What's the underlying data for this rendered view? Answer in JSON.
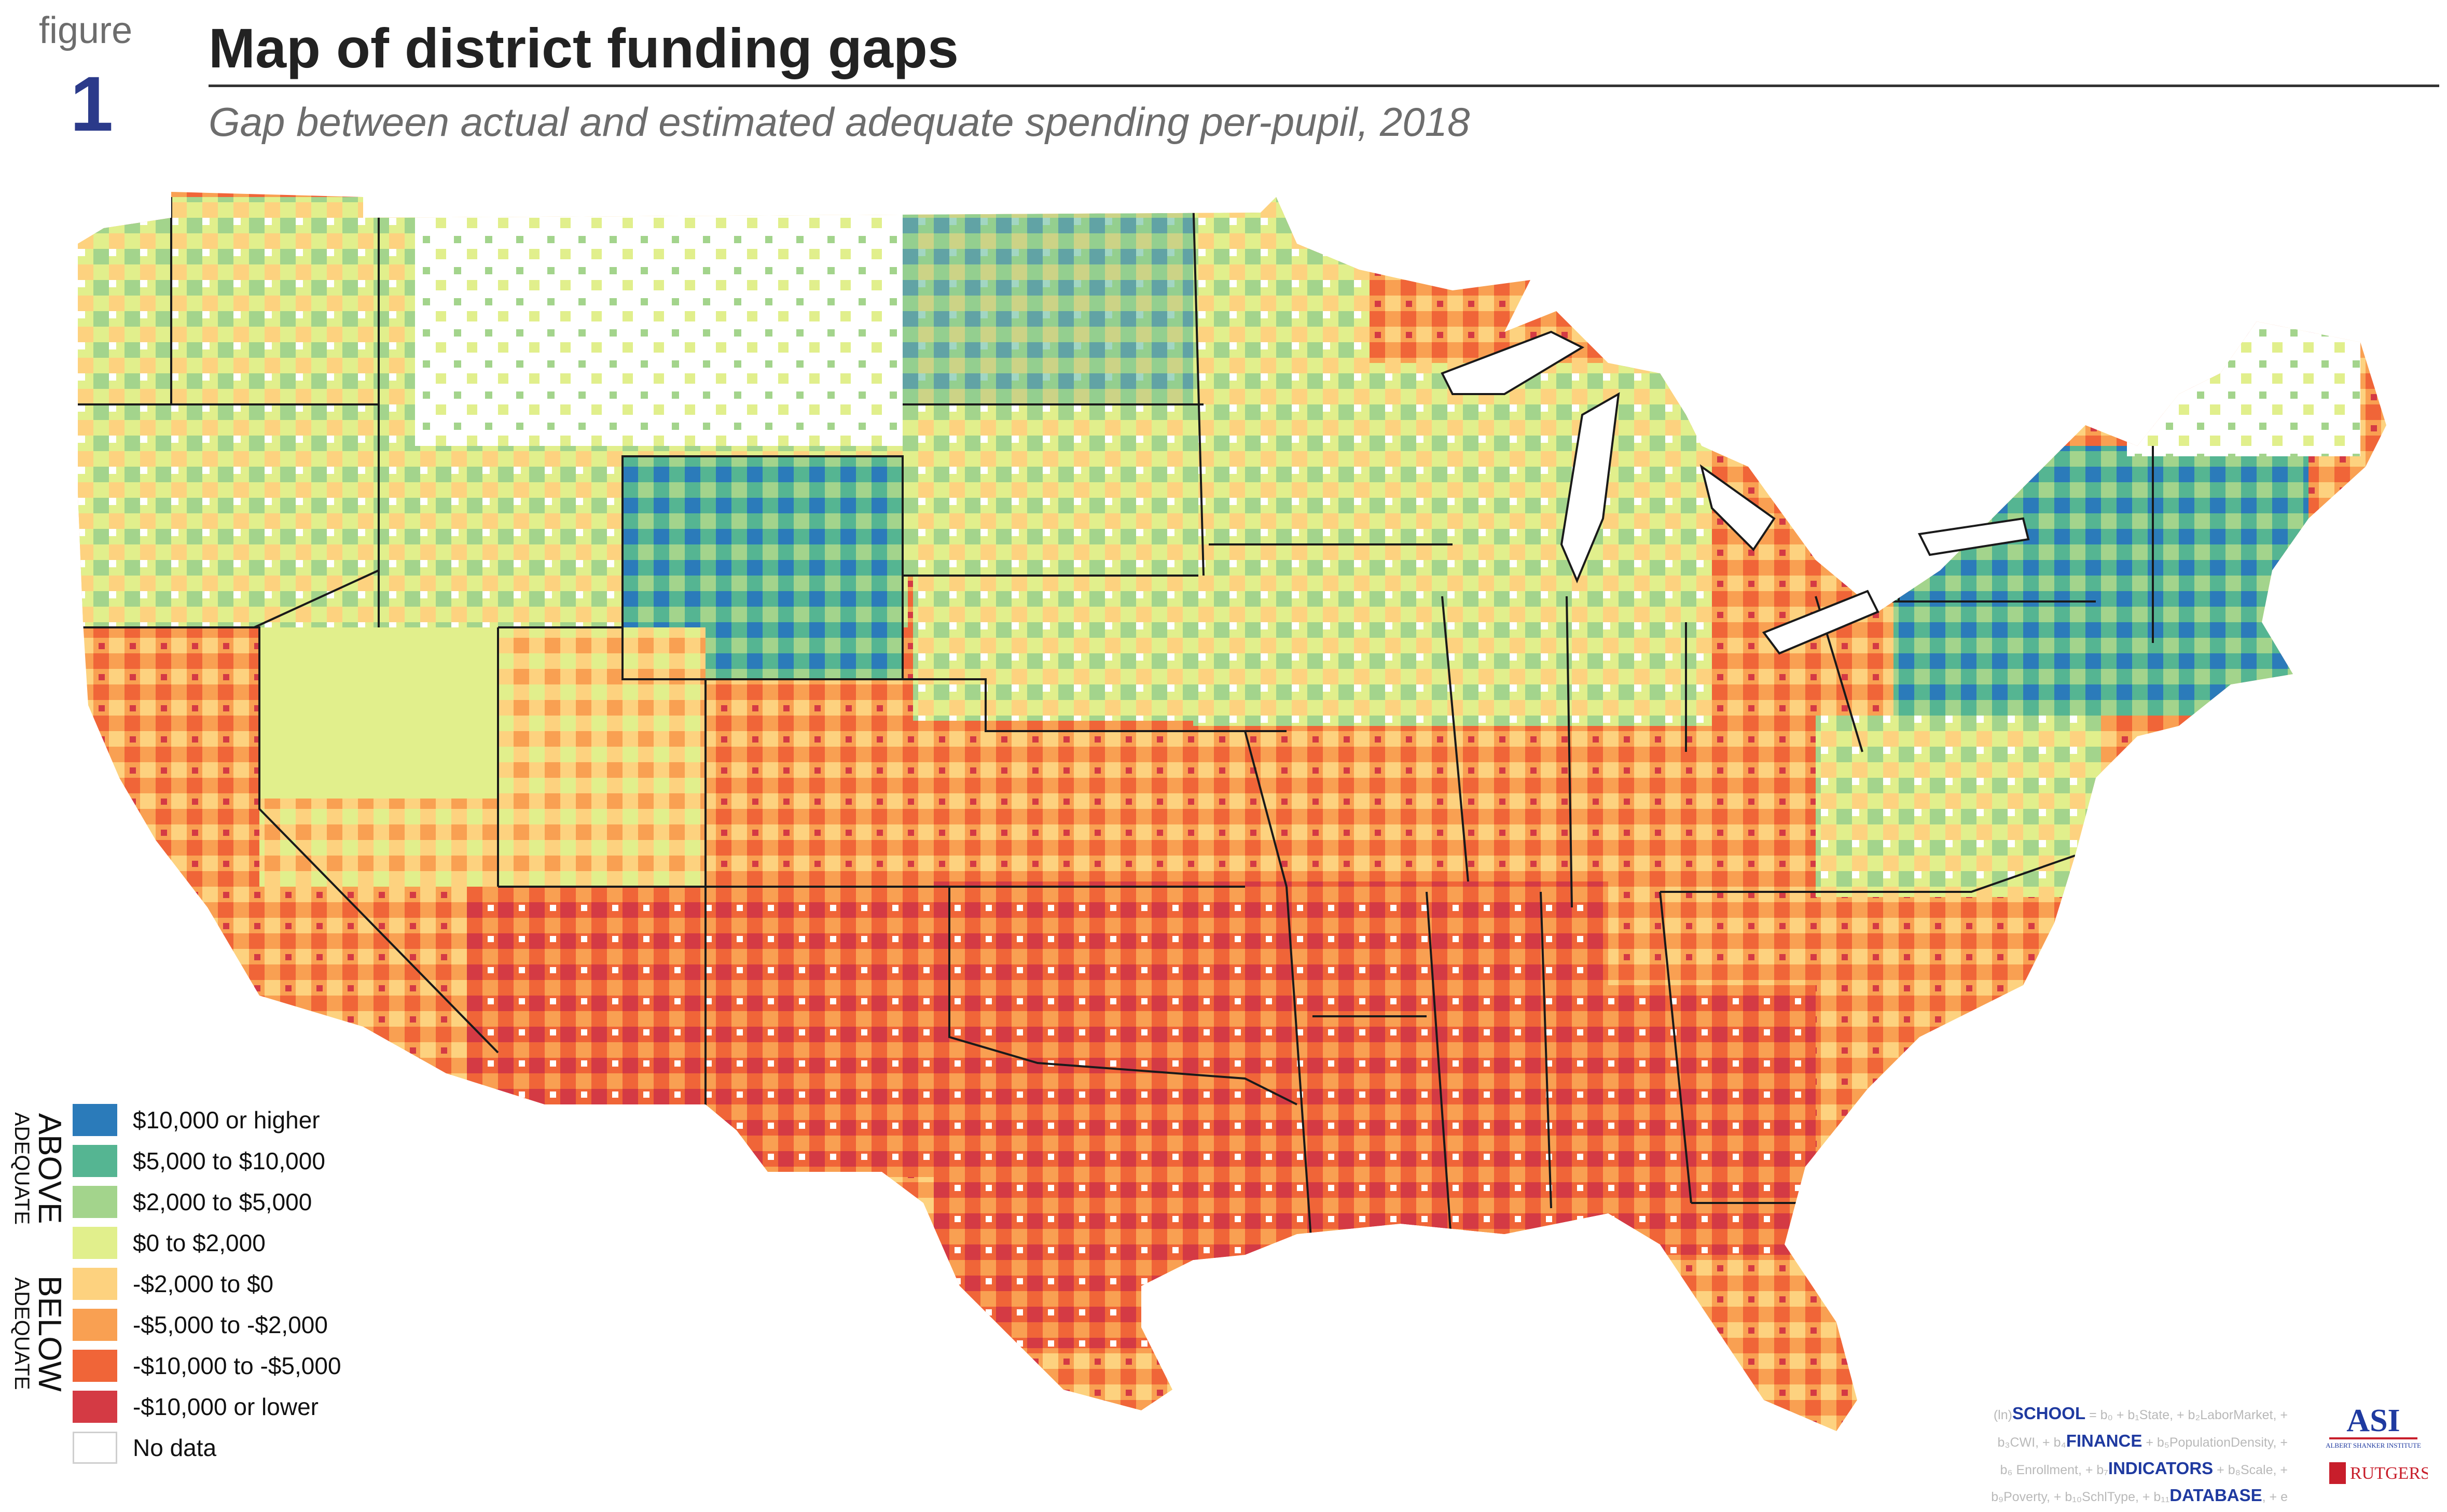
{
  "header": {
    "figure_label": "figure",
    "figure_number": "1",
    "title": "Map of district funding gaps",
    "subtitle": "Gap between actual and estimated adequate spending per-pupil, 2018"
  },
  "legend": {
    "above_big": "ABOVE",
    "above_small": "ADEQUATE",
    "below_big": "BELOW",
    "below_small": "ADEQUATE",
    "items": [
      {
        "label": "$10,000 or higher",
        "color": "#2b7bba"
      },
      {
        "label": "$5,000 to $10,000",
        "color": "#55b592"
      },
      {
        "label": "$2,000 to $5,000",
        "color": "#a3d48c"
      },
      {
        "label": "$0 to $2,000",
        "color": "#e1ef8c"
      },
      {
        "label": "-$2,000 to $0",
        "color": "#fdd27f"
      },
      {
        "label": "-$5,000 to -$2,000",
        "color": "#f9a052"
      },
      {
        "label": "-$10,000 to -$5,000",
        "color": "#f06538"
      },
      {
        "label": "-$10,000 or lower",
        "color": "#d43a44"
      },
      {
        "label": "No data",
        "color": "#ffffff"
      }
    ]
  },
  "equation": {
    "line1_prefix": "(ln)",
    "line1_bold": "SCHOOL",
    "line1_rest": " = b₀ + b₁State, + b₂LaborMarket, +",
    "line2_prefix": "b₃CWI, + b₄",
    "line2_bold": "FINANCE",
    "line2_rest": " + b₅PopulationDensity, +",
    "line3_prefix": "b₆ Enrollment, + b₇",
    "line3_bold": "INDICATORS",
    "line3_rest": " + b₈Scale, +",
    "line4_prefix": "b₉Poverty, + b₁₀SchlType, + b₁₁",
    "line4_bold": "DATABASE",
    "line4_rest": ", + e"
  },
  "logos": {
    "asi_mark": "ASI",
    "asi_name": "ALBERT SHANKER INSTITUTE",
    "rutgers_name": "RUTGERS"
  }
}
